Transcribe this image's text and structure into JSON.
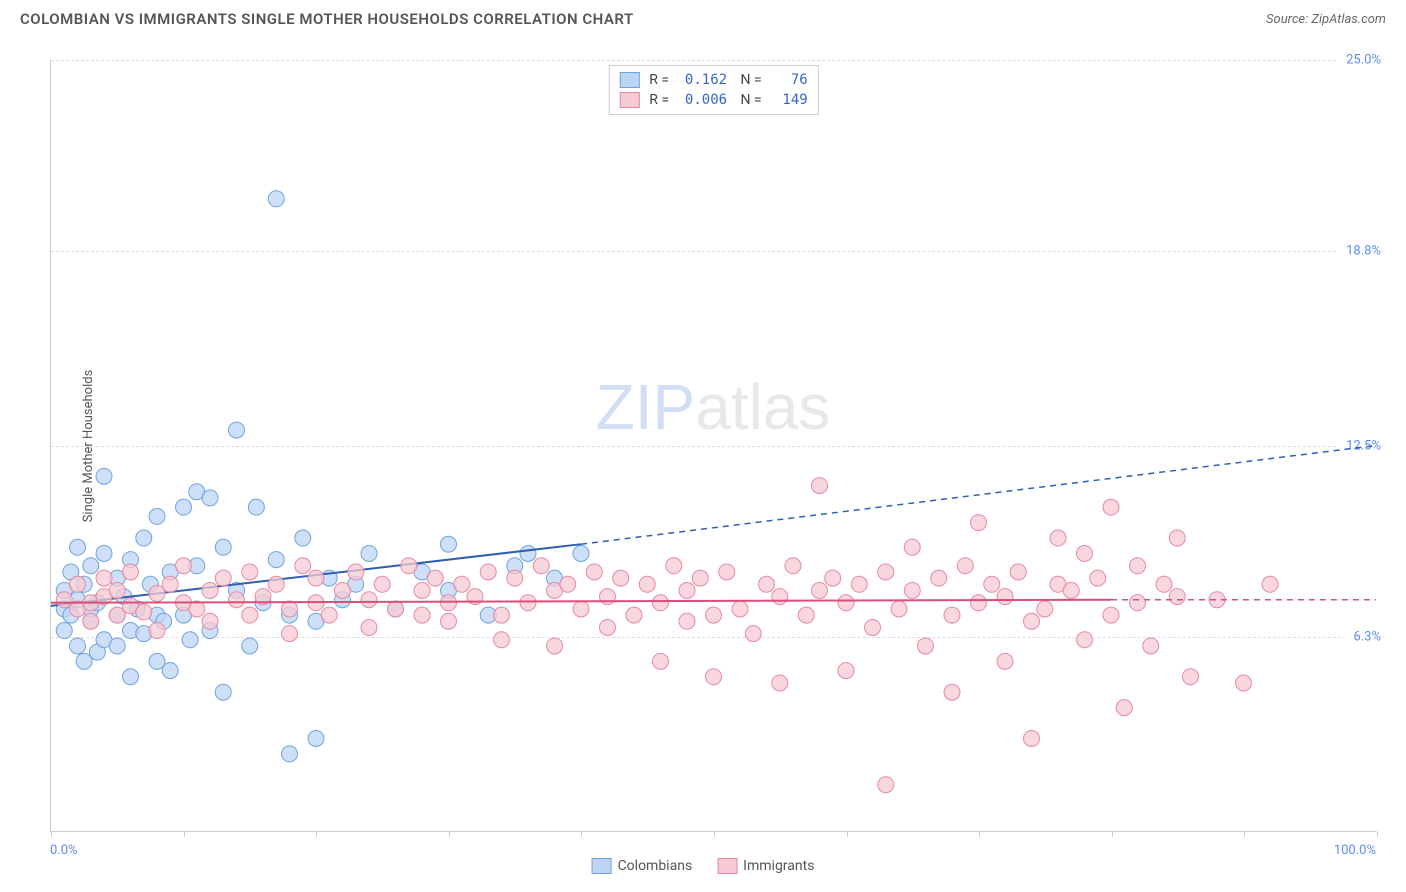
{
  "title": "COLOMBIAN VS IMMIGRANTS SINGLE MOTHER HOUSEHOLDS CORRELATION CHART",
  "source": "Source: ZipAtlas.com",
  "y_axis_label": "Single Mother Households",
  "watermark": {
    "part1": "ZIP",
    "part2": "atlas"
  },
  "chart": {
    "type": "scatter",
    "xlim": [
      0,
      100
    ],
    "ylim": [
      0,
      25
    ],
    "background_color": "#ffffff",
    "grid_color": "#dddddd",
    "grid_style": "dashed",
    "y_gridlines": [
      {
        "value": 6.3,
        "label": "6.3%"
      },
      {
        "value": 12.5,
        "label": "12.5%"
      },
      {
        "value": 18.8,
        "label": "18.8%"
      },
      {
        "value": 25.0,
        "label": "25.0%"
      }
    ],
    "x_ticks": [
      0,
      10,
      20,
      30,
      40,
      50,
      60,
      70,
      80,
      90,
      100
    ],
    "x_labels": [
      {
        "value": 0,
        "label": "0.0%",
        "align": "left"
      },
      {
        "value": 100,
        "label": "100.0%",
        "align": "right"
      }
    ],
    "series": [
      {
        "name": "Colombians",
        "color_fill": "#bcd5f5",
        "color_stroke": "#6fa3e0",
        "marker_radius": 8,
        "marker_opacity": 0.75,
        "R": "0.162",
        "N": "76",
        "trendline": {
          "x1": 0,
          "y1": 7.3,
          "x2": 40,
          "y2": 9.3,
          "ext_x2": 100,
          "ext_y2": 12.5,
          "color": "#2e5fb0",
          "width": 2
        },
        "points": [
          [
            1,
            7.2
          ],
          [
            1,
            6.5
          ],
          [
            1,
            7.8
          ],
          [
            1.5,
            7.0
          ],
          [
            1.5,
            8.4
          ],
          [
            2,
            6.0
          ],
          [
            2,
            7.5
          ],
          [
            2,
            9.2
          ],
          [
            2.5,
            5.5
          ],
          [
            2.5,
            8.0
          ],
          [
            3,
            6.8
          ],
          [
            3,
            7.2
          ],
          [
            3,
            8.6
          ],
          [
            3.5,
            5.8
          ],
          [
            3.5,
            7.4
          ],
          [
            4,
            6.2
          ],
          [
            4,
            9.0
          ],
          [
            4,
            11.5
          ],
          [
            5,
            7.0
          ],
          [
            5,
            8.2
          ],
          [
            5,
            6.0
          ],
          [
            5.5,
            7.6
          ],
          [
            6,
            5.0
          ],
          [
            6,
            6.5
          ],
          [
            6,
            8.8
          ],
          [
            6.5,
            7.2
          ],
          [
            7,
            9.5
          ],
          [
            7,
            6.4
          ],
          [
            7.5,
            8.0
          ],
          [
            8,
            5.5
          ],
          [
            8,
            7.0
          ],
          [
            8,
            10.2
          ],
          [
            8.5,
            6.8
          ],
          [
            9,
            5.2
          ],
          [
            9,
            8.4
          ],
          [
            10,
            7.0
          ],
          [
            10,
            10.5
          ],
          [
            10.5,
            6.2
          ],
          [
            11,
            8.6
          ],
          [
            11,
            11.0
          ],
          [
            12,
            10.8
          ],
          [
            12,
            6.5
          ],
          [
            13,
            4.5
          ],
          [
            13,
            9.2
          ],
          [
            14,
            7.8
          ],
          [
            14,
            13.0
          ],
          [
            15,
            6.0
          ],
          [
            15.5,
            10.5
          ],
          [
            16,
            7.4
          ],
          [
            17,
            8.8
          ],
          [
            17,
            20.5
          ],
          [
            18,
            7.0
          ],
          [
            18,
            2.5
          ],
          [
            19,
            9.5
          ],
          [
            20,
            3.0
          ],
          [
            20,
            6.8
          ],
          [
            21,
            8.2
          ],
          [
            22,
            7.5
          ],
          [
            23,
            8.0
          ],
          [
            24,
            9.0
          ],
          [
            26,
            7.2
          ],
          [
            28,
            8.4
          ],
          [
            30,
            7.8
          ],
          [
            30,
            9.3
          ],
          [
            33,
            7.0
          ],
          [
            35,
            8.6
          ],
          [
            36,
            9.0
          ],
          [
            38,
            8.2
          ],
          [
            40,
            9.0
          ]
        ]
      },
      {
        "name": "Immigrants",
        "color_fill": "#f6c9d3",
        "color_stroke": "#e68aa3",
        "marker_radius": 8,
        "marker_opacity": 0.75,
        "R": "0.006",
        "N": "149",
        "trendline": {
          "x1": 0,
          "y1": 7.4,
          "x2": 80,
          "y2": 7.5,
          "ext_x2": 100,
          "ext_y2": 7.5,
          "color": "#d94f78",
          "width": 2
        },
        "points": [
          [
            1,
            7.5
          ],
          [
            2,
            7.2
          ],
          [
            2,
            8.0
          ],
          [
            3,
            7.4
          ],
          [
            3,
            6.8
          ],
          [
            4,
            7.6
          ],
          [
            4,
            8.2
          ],
          [
            5,
            7.0
          ],
          [
            5,
            7.8
          ],
          [
            6,
            7.3
          ],
          [
            6,
            8.4
          ],
          [
            7,
            7.1
          ],
          [
            8,
            7.7
          ],
          [
            8,
            6.5
          ],
          [
            9,
            8.0
          ],
          [
            10,
            7.4
          ],
          [
            10,
            8.6
          ],
          [
            11,
            7.2
          ],
          [
            12,
            7.8
          ],
          [
            12,
            6.8
          ],
          [
            13,
            8.2
          ],
          [
            14,
            7.5
          ],
          [
            15,
            7.0
          ],
          [
            15,
            8.4
          ],
          [
            16,
            7.6
          ],
          [
            17,
            8.0
          ],
          [
            18,
            7.2
          ],
          [
            18,
            6.4
          ],
          [
            19,
            8.6
          ],
          [
            20,
            7.4
          ],
          [
            20,
            8.2
          ],
          [
            21,
            7.0
          ],
          [
            22,
            7.8
          ],
          [
            23,
            8.4
          ],
          [
            24,
            6.6
          ],
          [
            24,
            7.5
          ],
          [
            25,
            8.0
          ],
          [
            26,
            7.2
          ],
          [
            27,
            8.6
          ],
          [
            28,
            7.0
          ],
          [
            28,
            7.8
          ],
          [
            29,
            8.2
          ],
          [
            30,
            6.8
          ],
          [
            30,
            7.4
          ],
          [
            31,
            8.0
          ],
          [
            32,
            7.6
          ],
          [
            33,
            8.4
          ],
          [
            34,
            7.0
          ],
          [
            34,
            6.2
          ],
          [
            35,
            8.2
          ],
          [
            36,
            7.4
          ],
          [
            37,
            8.6
          ],
          [
            38,
            6.0
          ],
          [
            38,
            7.8
          ],
          [
            39,
            8.0
          ],
          [
            40,
            7.2
          ],
          [
            41,
            8.4
          ],
          [
            42,
            6.6
          ],
          [
            42,
            7.6
          ],
          [
            43,
            8.2
          ],
          [
            44,
            7.0
          ],
          [
            45,
            8.0
          ],
          [
            46,
            5.5
          ],
          [
            46,
            7.4
          ],
          [
            47,
            8.6
          ],
          [
            48,
            6.8
          ],
          [
            48,
            7.8
          ],
          [
            49,
            8.2
          ],
          [
            50,
            7.0
          ],
          [
            50,
            5.0
          ],
          [
            51,
            8.4
          ],
          [
            52,
            7.2
          ],
          [
            53,
            6.4
          ],
          [
            54,
            8.0
          ],
          [
            55,
            7.6
          ],
          [
            55,
            4.8
          ],
          [
            56,
            8.6
          ],
          [
            57,
            7.0
          ],
          [
            58,
            11.2
          ],
          [
            58,
            7.8
          ],
          [
            59,
            8.2
          ],
          [
            60,
            5.2
          ],
          [
            60,
            7.4
          ],
          [
            61,
            8.0
          ],
          [
            62,
            6.6
          ],
          [
            63,
            8.4
          ],
          [
            63,
            1.5
          ],
          [
            64,
            7.2
          ],
          [
            65,
            9.2
          ],
          [
            65,
            7.8
          ],
          [
            66,
            6.0
          ],
          [
            67,
            8.2
          ],
          [
            68,
            7.0
          ],
          [
            68,
            4.5
          ],
          [
            69,
            8.6
          ],
          [
            70,
            7.4
          ],
          [
            70,
            10.0
          ],
          [
            71,
            8.0
          ],
          [
            72,
            5.5
          ],
          [
            72,
            7.6
          ],
          [
            73,
            8.4
          ],
          [
            74,
            6.8
          ],
          [
            74,
            3.0
          ],
          [
            75,
            7.2
          ],
          [
            76,
            9.5
          ],
          [
            76,
            8.0
          ],
          [
            77,
            7.8
          ],
          [
            78,
            6.2
          ],
          [
            78,
            9.0
          ],
          [
            79,
            8.2
          ],
          [
            80,
            7.0
          ],
          [
            80,
            10.5
          ],
          [
            81,
            4.0
          ],
          [
            82,
            8.6
          ],
          [
            82,
            7.4
          ],
          [
            83,
            6.0
          ],
          [
            84,
            8.0
          ],
          [
            85,
            9.5
          ],
          [
            85,
            7.6
          ],
          [
            86,
            5.0
          ],
          [
            88,
            7.5
          ],
          [
            90,
            4.8
          ],
          [
            92,
            8.0
          ]
        ]
      }
    ],
    "bottom_legend": [
      {
        "label": "Colombians",
        "fill": "#bcd5f5",
        "stroke": "#6fa3e0"
      },
      {
        "label": "Immigrants",
        "fill": "#f6c9d3",
        "stroke": "#e68aa3"
      }
    ]
  }
}
